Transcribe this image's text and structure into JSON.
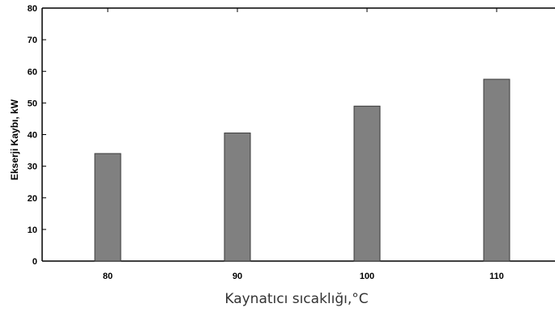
{
  "chart_data": {
    "type": "bar",
    "categories": [
      "80",
      "90",
      "100",
      "110"
    ],
    "values": [
      34,
      40.5,
      49,
      57.5
    ],
    "xlabel": "Kaynatıcı sıcaklığı,°C",
    "ylabel": "Ekserji Kaybı, kW",
    "ylim": [
      0,
      80
    ],
    "yticks": [
      "0",
      "10",
      "20",
      "30",
      "40",
      "50",
      "60",
      "70",
      "80"
    ],
    "grid": false,
    "legend": "none",
    "colors": {
      "bar_fill": "#808080",
      "bar_stroke": "#3a3a3a",
      "axis": "#000000"
    }
  }
}
